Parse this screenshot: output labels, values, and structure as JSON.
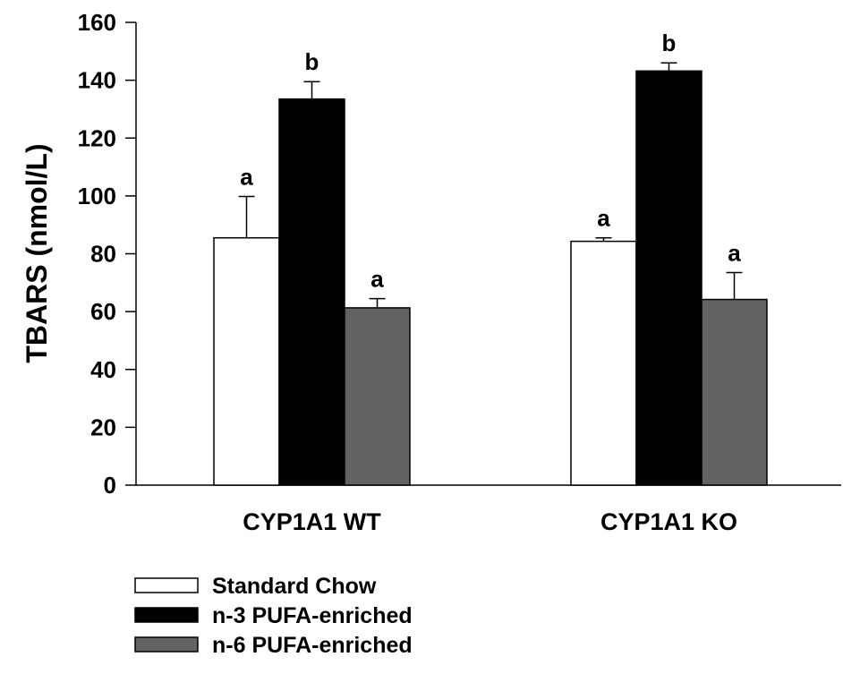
{
  "chart_data": {
    "type": "bar",
    "title": "",
    "xlabel": "",
    "ylabel": "TBARS (nmol/L)",
    "ylim": [
      0,
      160
    ],
    "yticks": [
      0,
      20,
      40,
      60,
      80,
      100,
      120,
      140,
      160
    ],
    "grid": false,
    "legend_position": "bottom-left",
    "categories": [
      "CYP1A1 WT",
      "CYP1A1 KO"
    ],
    "series": [
      {
        "name": "Standard Chow",
        "color": "#ffffff",
        "values": [
          85.5,
          84.3
        ],
        "errors": [
          14.3,
          1.2
        ],
        "labels": [
          "a",
          "a"
        ]
      },
      {
        "name": "n-3 PUFA-enriched",
        "color": "#000000",
        "values": [
          133.5,
          143.2
        ],
        "errors": [
          6.0,
          2.8
        ],
        "labels": [
          "b",
          "b"
        ]
      },
      {
        "name": "n-6 PUFA-enriched",
        "color": "#636363",
        "values": [
          61.3,
          64.2
        ],
        "errors": [
          3.2,
          9.3
        ],
        "labels": [
          "a",
          "a"
        ]
      }
    ]
  }
}
